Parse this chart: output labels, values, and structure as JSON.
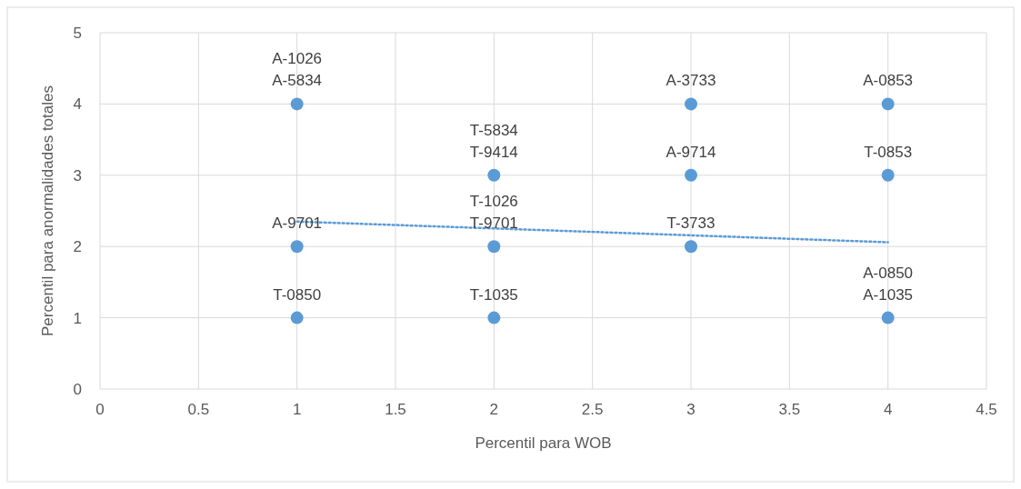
{
  "chart_data": {
    "type": "scatter",
    "xlabel": "Percentil para WOB",
    "ylabel": "Percentil para anormalidades totales",
    "xlim": [
      0,
      4.5
    ],
    "xticks": [
      0,
      0.5,
      1,
      1.5,
      2,
      2.5,
      3,
      3.5,
      4,
      4.5
    ],
    "ylim": [
      0,
      5
    ],
    "yticks": [
      0,
      1,
      2,
      3,
      4,
      5
    ],
    "grid": true,
    "series": [
      {
        "marker": "circle",
        "color": "#5b9bd5",
        "x": [
          1,
          1,
          1,
          2,
          2,
          2,
          3,
          3,
          3,
          4,
          4,
          4
        ],
        "values": [
          4,
          2,
          1,
          3,
          2,
          1,
          4,
          3,
          2,
          4,
          3,
          1
        ]
      },
      {
        "type": "line",
        "color": "#5b9bd5",
        "line_style": "dotted",
        "x": [
          1,
          4
        ],
        "values": [
          2.35,
          2.06
        ]
      }
    ],
    "annotations": [
      {
        "text": "A-1026\nA-5834",
        "x": 1,
        "y": 4
      },
      {
        "text": "A-9701",
        "x": 1,
        "y": 2
      },
      {
        "text": "T-0850",
        "x": 1,
        "y": 1
      },
      {
        "text": "T-5834\nT-9414",
        "x": 2,
        "y": 3
      },
      {
        "text": "T-1026\nT-9701",
        "x": 2,
        "y": 2
      },
      {
        "text": "T-1035",
        "x": 2,
        "y": 1
      },
      {
        "text": "A-3733",
        "x": 3,
        "y": 4
      },
      {
        "text": "A-9714",
        "x": 3,
        "y": 3
      },
      {
        "text": "T-3733",
        "x": 3,
        "y": 2
      },
      {
        "text": "A-0853",
        "x": 4,
        "y": 4
      },
      {
        "text": "T-0853",
        "x": 4,
        "y": 3
      },
      {
        "text": "A-0850\nA-1035",
        "x": 4,
        "y": 1
      }
    ]
  }
}
